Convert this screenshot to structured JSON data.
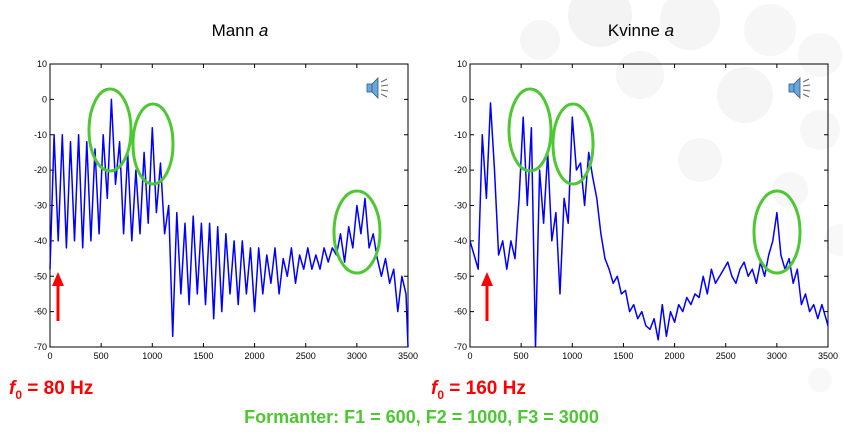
{
  "charts_header": {
    "left_title": "Mann a",
    "left_title_prefix": "Mann ",
    "left_title_vowel": "a",
    "right_title": "Kvinne a",
    "right_title_prefix": "Kvinne ",
    "right_title_vowel": "a"
  },
  "annotations": {
    "left_f0_symbol": "f",
    "left_f0_sub": "0",
    "left_f0_value": " = 80 Hz",
    "right_f0_symbol": "f",
    "right_f0_sub": "0",
    "right_f0_value": " = 160 Hz",
    "formants": "Formanter: F1 = 600, F2 = 1000, F3 = 3000"
  },
  "colors": {
    "line": "#0000ff",
    "formant_circle": "#4dc832",
    "arrow": "#ff0000",
    "background_dots": "#f2f2f2"
  },
  "icons": [
    "speaker-icon"
  ],
  "chart_data": [
    {
      "type": "line",
      "title": "Mann a",
      "xlim": [
        0,
        3500
      ],
      "ylim": [
        -70,
        10
      ],
      "xticks": [
        0,
        500,
        1000,
        1500,
        2000,
        2500,
        3000,
        3500
      ],
      "yticks": [
        10,
        0,
        -10,
        -20,
        -30,
        -40,
        -50,
        -60,
        -70
      ],
      "f0_hz": 80,
      "formants_hz": [
        600,
        1000,
        3000
      ],
      "series": [
        {
          "x": [
            0,
            40,
            80,
            120,
            160,
            200,
            240,
            280,
            320,
            360,
            400,
            440,
            480,
            520,
            560,
            600,
            640,
            680,
            720,
            760,
            800,
            840,
            880,
            920,
            960,
            1000,
            1040,
            1080,
            1120,
            1160,
            1200,
            1240,
            1280,
            1320,
            1360,
            1400,
            1440,
            1480,
            1520,
            1560,
            1600,
            1640,
            1680,
            1720,
            1760,
            1800,
            1840,
            1880,
            1920,
            1960,
            2000,
            2040,
            2080,
            2120,
            2160,
            2200,
            2240,
            2280,
            2320,
            2360,
            2400,
            2440,
            2480,
            2520,
            2560,
            2600,
            2640,
            2680,
            2720,
            2760,
            2800,
            2840,
            2880,
            2920,
            2960,
            3000,
            3040,
            3080,
            3120,
            3160,
            3200,
            3240,
            3280,
            3320,
            3360,
            3400,
            3440,
            3480,
            3500
          ],
          "y": [
            -48,
            -10,
            -40,
            -10,
            -42,
            -12,
            -40,
            -10,
            -42,
            -12,
            -40,
            -14,
            -38,
            -10,
            -28,
            0,
            -24,
            -12,
            -38,
            -15,
            -40,
            -20,
            -38,
            -15,
            -35,
            -8,
            -32,
            -18,
            -38,
            -30,
            -67,
            -32,
            -55,
            -35,
            -58,
            -33,
            -55,
            -35,
            -58,
            -35,
            -62,
            -36,
            -60,
            -38,
            -55,
            -40,
            -58,
            -40,
            -55,
            -42,
            -60,
            -42,
            -55,
            -44,
            -52,
            -42,
            -55,
            -45,
            -50,
            -42,
            -52,
            -44,
            -48,
            -42,
            -48,
            -44,
            -48,
            -42,
            -46,
            -42,
            -44,
            -38,
            -46,
            -36,
            -42,
            -30,
            -38,
            -28,
            -42,
            -38,
            -45,
            -50,
            -45,
            -52,
            -48,
            -60,
            -50,
            -55,
            -70
          ]
        }
      ]
    },
    {
      "type": "line",
      "title": "Kvinne a",
      "xlim": [
        0,
        3500
      ],
      "ylim": [
        -70,
        10
      ],
      "xticks": [
        0,
        500,
        1000,
        1500,
        2000,
        2500,
        3000,
        3500
      ],
      "yticks": [
        10,
        0,
        -10,
        -20,
        -30,
        -40,
        -50,
        -60,
        -70
      ],
      "f0_hz": 160,
      "formants_hz": [
        600,
        1000,
        3000
      ],
      "series": [
        {
          "x": [
            0,
            40,
            80,
            120,
            160,
            200,
            240,
            280,
            320,
            360,
            400,
            440,
            480,
            520,
            560,
            600,
            640,
            680,
            720,
            760,
            800,
            840,
            880,
            920,
            960,
            1000,
            1040,
            1080,
            1120,
            1160,
            1200,
            1240,
            1280,
            1320,
            1360,
            1400,
            1440,
            1480,
            1520,
            1560,
            1600,
            1640,
            1680,
            1720,
            1760,
            1800,
            1840,
            1880,
            1920,
            1960,
            2000,
            2040,
            2080,
            2120,
            2160,
            2200,
            2240,
            2280,
            2320,
            2360,
            2400,
            2440,
            2480,
            2520,
            2560,
            2600,
            2640,
            2680,
            2720,
            2760,
            2800,
            2840,
            2880,
            2920,
            2960,
            3000,
            3040,
            3080,
            3120,
            3160,
            3200,
            3240,
            3280,
            3320,
            3360,
            3400,
            3440,
            3480,
            3500
          ],
          "y": [
            -40,
            -44,
            -48,
            -10,
            -28,
            -1,
            -20,
            -44,
            -40,
            -48,
            -40,
            -45,
            -28,
            -5,
            -30,
            -8,
            -70,
            -20,
            -35,
            -15,
            -40,
            -32,
            -55,
            -28,
            -35,
            -5,
            -20,
            -18,
            -30,
            -15,
            -22,
            -28,
            -38,
            -45,
            -48,
            -52,
            -50,
            -55,
            -54,
            -60,
            -58,
            -62,
            -60,
            -64,
            -65,
            -62,
            -68,
            -58,
            -67,
            -60,
            -63,
            -58,
            -60,
            -56,
            -58,
            -55,
            -56,
            -50,
            -55,
            -48,
            -52,
            -50,
            -48,
            -46,
            -50,
            -52,
            -48,
            -46,
            -50,
            -48,
            -52,
            -46,
            -50,
            -44,
            -40,
            -32,
            -44,
            -48,
            -45,
            -52,
            -48,
            -58,
            -55,
            -60,
            -58,
            -62,
            -58,
            -62,
            -64
          ]
        }
      ]
    }
  ]
}
